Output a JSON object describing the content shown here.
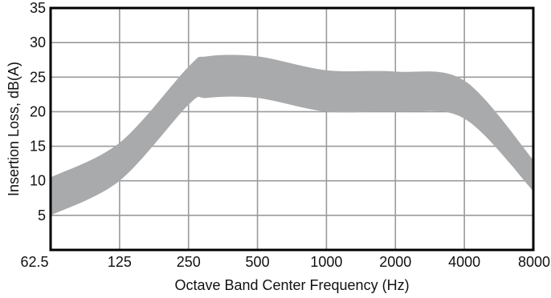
{
  "chart_data": {
    "type": "area",
    "xlabel": "Octave Band Center Frequency (Hz)",
    "ylabel": "Insertion Loss, dB(A)",
    "x_ticks": [
      "62.5",
      "125",
      "250",
      "500",
      "1000",
      "2000",
      "4000",
      "8000"
    ],
    "y_ticks": [
      "5",
      "10",
      "15",
      "20",
      "25",
      "30",
      "35"
    ],
    "ylim": [
      0,
      35
    ],
    "x_scale": "log2 (octave bands)",
    "grid": true,
    "band_color": "#a9aaac",
    "grid_color": "#9a9a9a",
    "series": [
      {
        "role": "upper bound",
        "x": [
          62.5,
          125,
          250,
          300,
          500,
          1000,
          2000,
          4000,
          8000
        ],
        "values": [
          10.5,
          15.5,
          26.5,
          28,
          28,
          26,
          25.8,
          24.5,
          13
        ]
      },
      {
        "role": "lower bound",
        "x": [
          62.5,
          125,
          250,
          300,
          500,
          1000,
          2000,
          4000,
          8000
        ],
        "values": [
          5,
          10,
          21,
          22,
          22,
          20,
          20,
          19,
          8.5
        ]
      }
    ]
  }
}
